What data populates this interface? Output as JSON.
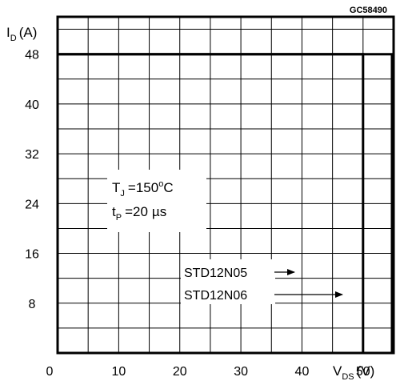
{
  "code": "GC58490",
  "ylabel": {
    "main": "I",
    "sub": "D",
    "unit": "(A)"
  },
  "xlabel": {
    "main": "V",
    "sub": "DS",
    "unit": "(V)"
  },
  "conditions": [
    {
      "main": "T",
      "sub": "J",
      "value": "=150",
      "deg": "o",
      "unit": "C"
    },
    {
      "main": "t",
      "sub": "P",
      "value": "=20",
      "unit": "µs"
    }
  ],
  "chart_data": {
    "type": "line",
    "title": "",
    "xlim": [
      0,
      55
    ],
    "ylim": [
      0,
      54
    ],
    "x_ticks": [
      0,
      10,
      20,
      30,
      40,
      50
    ],
    "y_ticks": [
      8,
      16,
      24,
      32,
      40,
      48
    ],
    "grid": true,
    "series": [
      {
        "name": "STD12N05",
        "x": [
          0,
          50,
          50
        ],
        "y": [
          48,
          48,
          0
        ]
      },
      {
        "name": "STD12N06",
        "x": [
          0,
          60,
          60
        ],
        "y": [
          48,
          48,
          0
        ]
      }
    ]
  }
}
